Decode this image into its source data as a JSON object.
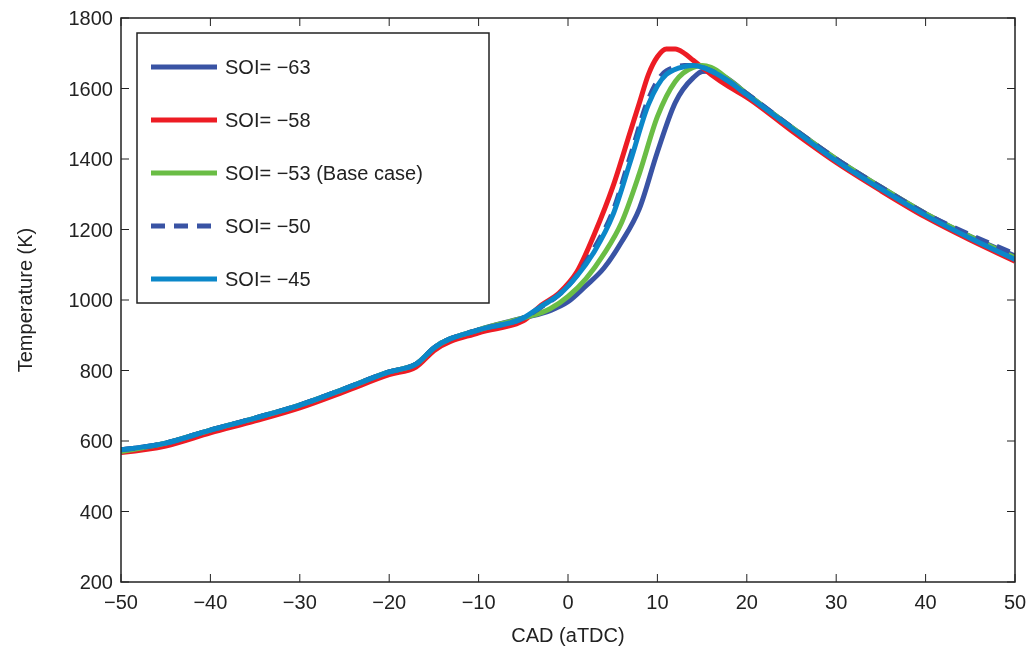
{
  "chart_data": {
    "type": "line",
    "xlabel": "CAD (aTDC)",
    "ylabel": "Temperature (K)",
    "xlim": [
      -50,
      50
    ],
    "ylim": [
      200,
      1800
    ],
    "xticks": [
      -50,
      -40,
      -30,
      -20,
      -10,
      0,
      10,
      20,
      30,
      40,
      50
    ],
    "yticks": [
      200,
      400,
      600,
      800,
      1000,
      1200,
      1400,
      1600,
      1800
    ],
    "legend": "top left",
    "grid": false,
    "line_style": "solid",
    "series": [
      {
        "name": "SOI= −63",
        "color": "#3953a4",
        "x": [
          -50,
          -45,
          -40,
          -35,
          -30,
          -25,
          -20,
          -17,
          -15,
          -10,
          -5,
          -2,
          0,
          2,
          4,
          6,
          8,
          10,
          12,
          14,
          15,
          16,
          18,
          20,
          25,
          30,
          35,
          40,
          45,
          50
        ],
        "values": [
          575,
          594,
          631,
          665,
          702,
          748,
          796,
          818,
          864,
          915,
          949,
          970,
          995,
          1040,
          1090,
          1165,
          1260,
          1420,
          1560,
          1630,
          1648,
          1650,
          1625,
          1585,
          1490,
          1400,
          1320,
          1245,
          1180,
          1125
        ]
      },
      {
        "name": "SOI= −58",
        "color": "#ed1c24",
        "x": [
          -50,
          -45,
          -40,
          -35,
          -30,
          -25,
          -20,
          -17,
          -15,
          -10,
          -5,
          -3,
          -1,
          1,
          3,
          5,
          7,
          8,
          9,
          10,
          11,
          12,
          13,
          14,
          16,
          18,
          20,
          25,
          30,
          35,
          40,
          45,
          50
        ],
        "values": [
          567,
          586,
          623,
          657,
          694,
          740,
          788,
          810,
          856,
          907,
          941,
          985,
          1020,
          1080,
          1190,
          1320,
          1480,
          1560,
          1640,
          1690,
          1712,
          1712,
          1700,
          1680,
          1640,
          1605,
          1575,
          1480,
          1390,
          1310,
          1235,
          1170,
          1110
        ]
      },
      {
        "name": "SOI= −53 (Base case)",
        "color": "#6abd45",
        "x": [
          -50,
          -45,
          -40,
          -35,
          -30,
          -25,
          -20,
          -17,
          -15,
          -10,
          -5,
          -2,
          0,
          2,
          4,
          6,
          8,
          10,
          12,
          14,
          15,
          16,
          18,
          20,
          25,
          30,
          35,
          40,
          45,
          50
        ],
        "values": [
          570,
          594,
          631,
          665,
          702,
          748,
          796,
          818,
          864,
          915,
          949,
          975,
          1010,
          1060,
          1130,
          1220,
          1360,
          1520,
          1620,
          1660,
          1665,
          1660,
          1625,
          1585,
          1490,
          1400,
          1320,
          1245,
          1180,
          1120
        ]
      },
      {
        "name": "SOI= −50",
        "color": "#3953a4",
        "line_style": "dashed",
        "x": [
          -50,
          -45,
          -40,
          -35,
          -30,
          -25,
          -20,
          -17,
          -15,
          -10,
          -5,
          -3,
          -1,
          1,
          3,
          5,
          7,
          9,
          11,
          13,
          14,
          16,
          18,
          20,
          25,
          30,
          35,
          40,
          45,
          50
        ],
        "values": [
          575,
          594,
          631,
          665,
          702,
          748,
          796,
          818,
          864,
          915,
          949,
          980,
          1015,
          1070,
          1150,
          1250,
          1410,
          1570,
          1650,
          1665,
          1665,
          1650,
          1620,
          1585,
          1490,
          1400,
          1320,
          1245,
          1185,
          1130
        ]
      },
      {
        "name": "SOI= −45",
        "color": "#0b87c9",
        "x": [
          -50,
          -45,
          -40,
          -35,
          -30,
          -25,
          -20,
          -17,
          -15,
          -10,
          -5,
          -3,
          -1,
          1,
          3,
          5,
          7,
          9,
          11,
          13,
          14,
          16,
          18,
          20,
          25,
          30,
          35,
          40,
          45,
          50
        ],
        "values": [
          575,
          594,
          631,
          665,
          702,
          748,
          796,
          818,
          864,
          915,
          949,
          982,
          1015,
          1068,
          1140,
          1240,
          1395,
          1555,
          1640,
          1662,
          1665,
          1650,
          1620,
          1582,
          1488,
          1395,
          1315,
          1240,
          1175,
          1115
        ]
      }
    ]
  }
}
